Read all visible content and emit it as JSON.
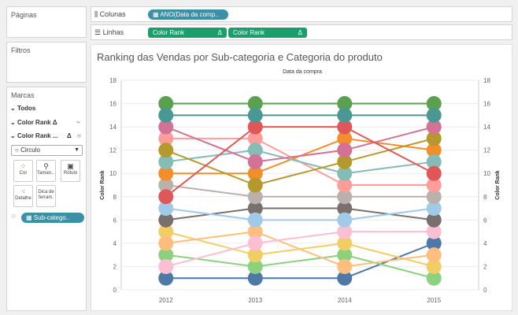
{
  "sidebar": {
    "pages_title": "Páginas",
    "filters_title": "Filtros",
    "marks_title": "Marcas",
    "all_label": "Todos",
    "cr_delta_label": "Color Rank",
    "cr_delta_symbol": "Δ",
    "cr2_label": "Color Rank ...",
    "mark_type": "Circulo",
    "buttons": [
      {
        "label": "Cor",
        "icon": "color-dots-icon"
      },
      {
        "label": "Taman...",
        "icon": "size-icon"
      },
      {
        "label": "Rótulo",
        "icon": "label-icon"
      },
      {
        "label": "Detalhe",
        "icon": "detail-icon"
      },
      {
        "label": "Dica de ferram.",
        "icon": "tooltip-icon"
      }
    ],
    "color_pill": "Sub-catego.."
  },
  "shelves": {
    "columns_label": "Colunas",
    "columns_pill": "ANO(Data da comp..",
    "rows_label": "Linhas",
    "rows_pills": [
      "Color Rank",
      "Color Rank"
    ],
    "rows_delta": "Δ"
  },
  "chart_data": {
    "type": "line",
    "title": "Ranking das Vendas por Sub-categoria e Categoria do produto",
    "column_header": "Data da compra",
    "ylabel": "Color Rank",
    "ylabel_right": "Color Rank",
    "ylim": [
      0,
      18
    ],
    "yticks": [
      "0",
      "2",
      "4",
      "6",
      "8",
      "10",
      "12",
      "14",
      "16",
      "18"
    ],
    "x": [
      "2012",
      "2013",
      "2014",
      "2015"
    ],
    "grid": true,
    "series": [
      {
        "color": "#4e79a7",
        "values": [
          1,
          1,
          1,
          4
        ]
      },
      {
        "color": "#59a14f",
        "values": [
          16,
          16,
          16,
          16
        ]
      },
      {
        "color": "#8cd17d",
        "values": [
          3,
          2,
          3,
          1
        ]
      },
      {
        "color": "#f1ce63",
        "values": [
          5,
          3,
          4,
          2
        ]
      },
      {
        "color": "#ffbe7d",
        "values": [
          4,
          5,
          2,
          3
        ]
      },
      {
        "color": "#fabfd2",
        "values": [
          2,
          4,
          5,
          5
        ]
      },
      {
        "color": "#79706e",
        "values": [
          6,
          7,
          7,
          6
        ]
      },
      {
        "color": "#a0cbe8",
        "values": [
          7,
          6,
          6,
          7
        ]
      },
      {
        "color": "#bab0ac",
        "values": [
          9,
          8,
          8,
          8
        ]
      },
      {
        "color": "#ff9d9a",
        "values": [
          13,
          13,
          9,
          9
        ]
      },
      {
        "color": "#f28e2b",
        "values": [
          10,
          10,
          13,
          12
        ]
      },
      {
        "color": "#86bcb6",
        "values": [
          11,
          12,
          10,
          11
        ]
      },
      {
        "color": "#b6992d",
        "values": [
          12,
          9,
          11,
          13
        ]
      },
      {
        "color": "#d37295",
        "values": [
          14,
          11,
          12,
          14
        ]
      },
      {
        "color": "#e15759",
        "values": [
          8,
          14,
          14,
          10
        ]
      },
      {
        "color": "#499894",
        "values": [
          15,
          15,
          15,
          15
        ]
      }
    ]
  }
}
